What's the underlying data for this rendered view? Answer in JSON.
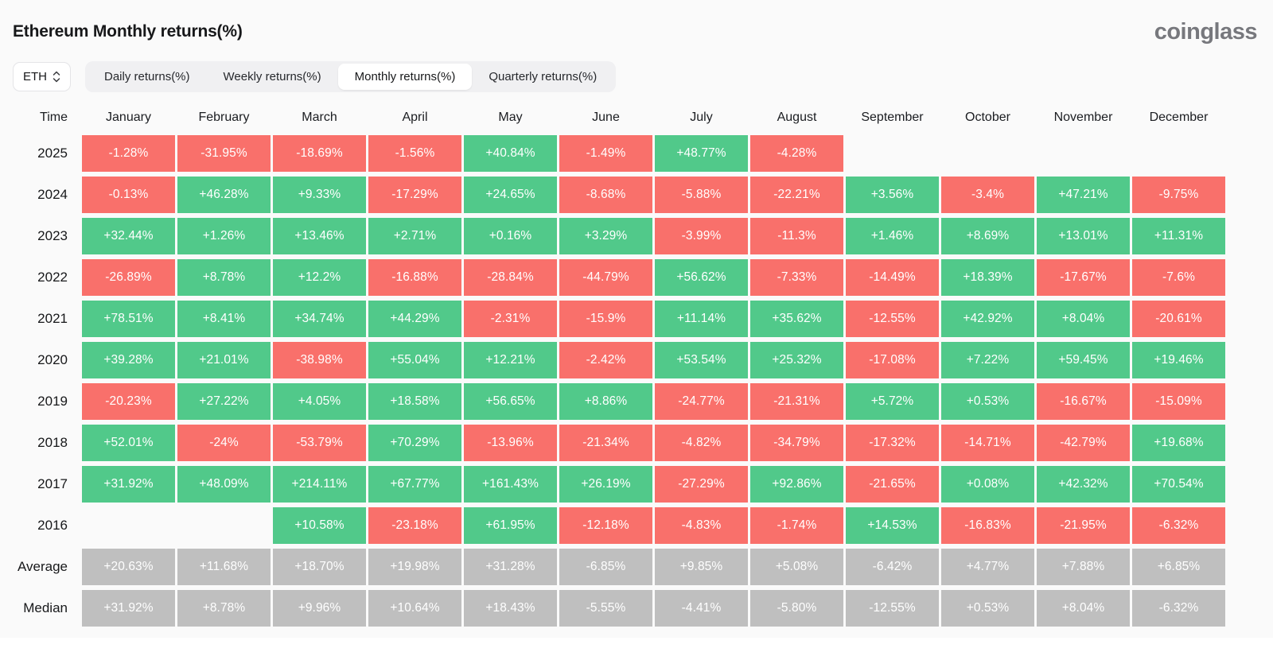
{
  "header": {
    "title": "Ethereum Monthly returns(%)",
    "logo": "coinglass"
  },
  "controls": {
    "symbol": "ETH",
    "tabs": [
      {
        "label": "Daily returns(%)",
        "active": false
      },
      {
        "label": "Weekly returns(%)",
        "active": false
      },
      {
        "label": "Monthly returns(%)",
        "active": true
      },
      {
        "label": "Quarterly returns(%)",
        "active": false
      }
    ]
  },
  "colors": {
    "positive": "#51c98a",
    "negative": "#f9706b",
    "summary": "#bfbfbf",
    "page_bg": "#fafafa"
  },
  "table": {
    "time_header": "Time",
    "months": [
      "January",
      "February",
      "March",
      "April",
      "May",
      "June",
      "July",
      "August",
      "September",
      "October",
      "November",
      "December"
    ],
    "rows": [
      {
        "label": "2025",
        "type": "year",
        "values": [
          "-1.28%",
          "-31.95%",
          "-18.69%",
          "-1.56%",
          "+40.84%",
          "-1.49%",
          "+48.77%",
          "-4.28%",
          "",
          "",
          "",
          ""
        ]
      },
      {
        "label": "2024",
        "type": "year",
        "values": [
          "-0.13%",
          "+46.28%",
          "+9.33%",
          "-17.29%",
          "+24.65%",
          "-8.68%",
          "-5.88%",
          "-22.21%",
          "+3.56%",
          "-3.4%",
          "+47.21%",
          "-9.75%"
        ]
      },
      {
        "label": "2023",
        "type": "year",
        "values": [
          "+32.44%",
          "+1.26%",
          "+13.46%",
          "+2.71%",
          "+0.16%",
          "+3.29%",
          "-3.99%",
          "-11.3%",
          "+1.46%",
          "+8.69%",
          "+13.01%",
          "+11.31%"
        ]
      },
      {
        "label": "2022",
        "type": "year",
        "values": [
          "-26.89%",
          "+8.78%",
          "+12.2%",
          "-16.88%",
          "-28.84%",
          "-44.79%",
          "+56.62%",
          "-7.33%",
          "-14.49%",
          "+18.39%",
          "-17.67%",
          "-7.6%"
        ]
      },
      {
        "label": "2021",
        "type": "year",
        "values": [
          "+78.51%",
          "+8.41%",
          "+34.74%",
          "+44.29%",
          "-2.31%",
          "-15.9%",
          "+11.14%",
          "+35.62%",
          "-12.55%",
          "+42.92%",
          "+8.04%",
          "-20.61%"
        ]
      },
      {
        "label": "2020",
        "type": "year",
        "values": [
          "+39.28%",
          "+21.01%",
          "-38.98%",
          "+55.04%",
          "+12.21%",
          "-2.42%",
          "+53.54%",
          "+25.32%",
          "-17.08%",
          "+7.22%",
          "+59.45%",
          "+19.46%"
        ]
      },
      {
        "label": "2019",
        "type": "year",
        "values": [
          "-20.23%",
          "+27.22%",
          "+4.05%",
          "+18.58%",
          "+56.65%",
          "+8.86%",
          "-24.77%",
          "-21.31%",
          "+5.72%",
          "+0.53%",
          "-16.67%",
          "-15.09%"
        ]
      },
      {
        "label": "2018",
        "type": "year",
        "values": [
          "+52.01%",
          "-24%",
          "-53.79%",
          "+70.29%",
          "-13.96%",
          "-21.34%",
          "-4.82%",
          "-34.79%",
          "-17.32%",
          "-14.71%",
          "-42.79%",
          "+19.68%"
        ]
      },
      {
        "label": "2017",
        "type": "year",
        "values": [
          "+31.92%",
          "+48.09%",
          "+214.11%",
          "+67.77%",
          "+161.43%",
          "+26.19%",
          "-27.29%",
          "+92.86%",
          "-21.65%",
          "+0.08%",
          "+42.32%",
          "+70.54%"
        ]
      },
      {
        "label": "2016",
        "type": "year",
        "values": [
          "",
          "",
          "+10.58%",
          "-23.18%",
          "+61.95%",
          "-12.18%",
          "-4.83%",
          "-1.74%",
          "+14.53%",
          "-16.83%",
          "-21.95%",
          "-6.32%"
        ]
      },
      {
        "label": "Average",
        "type": "summary",
        "values": [
          "+20.63%",
          "+11.68%",
          "+18.70%",
          "+19.98%",
          "+31.28%",
          "-6.85%",
          "+9.85%",
          "+5.08%",
          "-6.42%",
          "+4.77%",
          "+7.88%",
          "+6.85%"
        ]
      },
      {
        "label": "Median",
        "type": "summary",
        "values": [
          "+31.92%",
          "+8.78%",
          "+9.96%",
          "+10.64%",
          "+18.43%",
          "-5.55%",
          "-4.41%",
          "-5.80%",
          "-12.55%",
          "+0.53%",
          "+8.04%",
          "-6.32%"
        ]
      }
    ]
  }
}
